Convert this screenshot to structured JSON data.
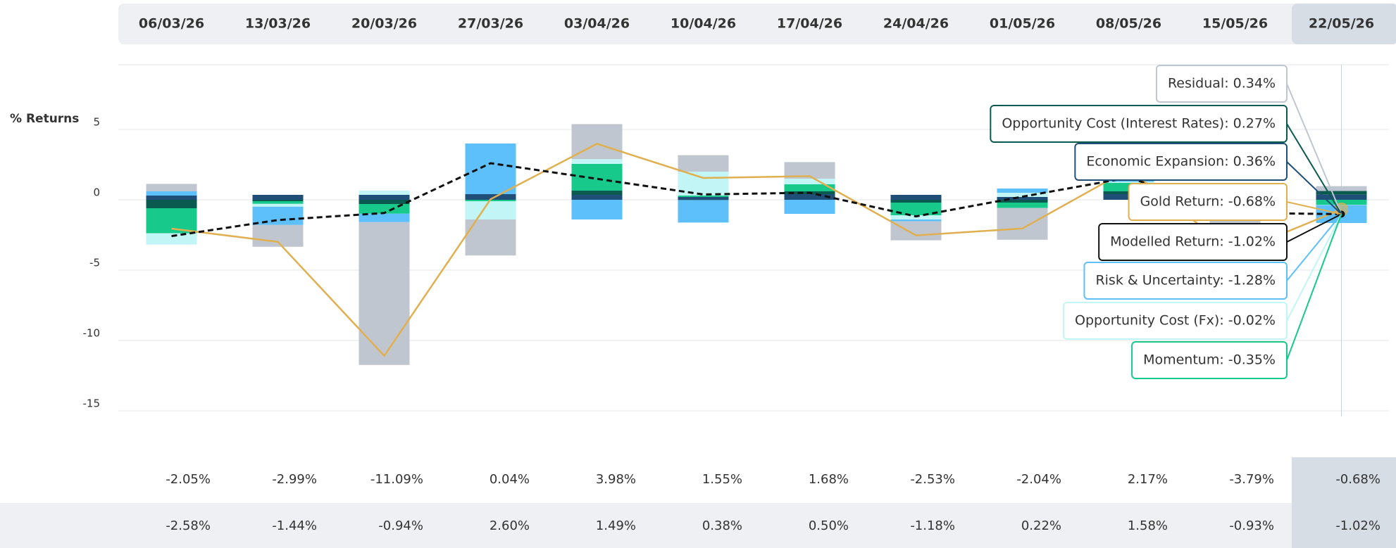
{
  "chart_data": {
    "type": "stacked-bar-line",
    "y_label": "% Returns",
    "categories": [
      "06/03/26",
      "13/03/26",
      "20/03/26",
      "27/03/26",
      "03/04/26",
      "10/04/26",
      "17/04/26",
      "24/04/26",
      "01/05/26",
      "08/05/26",
      "15/05/26",
      "22/05/26"
    ],
    "ylim": [
      -15,
      10
    ],
    "yticks": [
      -15,
      -10,
      -5,
      0,
      5
    ],
    "grid": true,
    "series": [
      {
        "name": "Economic Expansion",
        "color": "#1f4e79",
        "values": [
          0.3,
          0.35,
          0.35,
          0.4,
          0.35,
          0.2,
          0.4,
          0.35,
          0.2,
          0.4,
          0.3,
          0.36
        ]
      },
      {
        "name": "Opportunity Cost (Interest Rates)",
        "color": "#0b5a4f",
        "values": [
          -0.6,
          -0.1,
          -0.3,
          0,
          0.3,
          -0.02,
          0.2,
          -0.2,
          -0.2,
          0.2,
          -0.2,
          0.27
        ]
      },
      {
        "name": "Momentum",
        "color": "#17c98a",
        "values": [
          -1.78,
          -0.19,
          -0.69,
          -0.1,
          1.9,
          0.1,
          0.5,
          -0.9,
          -0.38,
          0.6,
          -0.3,
          -0.35
        ]
      },
      {
        "name": "Opportunity Cost (Fx)",
        "color": "#c2f5f5",
        "values": [
          -0.8,
          -0.2,
          0.3,
          -1.3,
          0.34,
          1.7,
          0.4,
          -0.3,
          0.3,
          0.08,
          -0.13,
          -0.02
        ]
      },
      {
        "name": "Risk & Uncertainty",
        "color": "#5ec0fa",
        "values": [
          0.3,
          -1.3,
          -0.6,
          3.6,
          -1.4,
          -1.6,
          -1.0,
          -0.13,
          0.3,
          0.3,
          -0.6,
          -1.28
        ]
      },
      {
        "name": "Residual",
        "color": "#c0c6cf",
        "values": [
          0.53,
          -1.55,
          -10.15,
          -2.56,
          2.49,
          1.17,
          1.18,
          -1.35,
          -2.26,
          0.59,
          -2.86,
          0.34
        ]
      }
    ],
    "lines": [
      {
        "name": "Gold Return",
        "color": "#e0b050",
        "dashed": false,
        "values": [
          -2.05,
          -2.99,
          -11.09,
          0.04,
          3.98,
          1.55,
          1.68,
          -2.53,
          -2.04,
          2.17,
          -3.79,
          -0.68
        ],
        "value_labels": [
          "-2.05%",
          "-2.99%",
          "-11.09%",
          "0.04%",
          "3.98%",
          "1.55%",
          "1.68%",
          "-2.53%",
          "-2.04%",
          "2.17%",
          "-3.79%",
          "-0.68%"
        ]
      },
      {
        "name": "Modelled Return",
        "color": "#111111",
        "dashed": true,
        "values": [
          -2.58,
          -1.44,
          -0.94,
          2.6,
          1.49,
          0.38,
          0.5,
          -1.18,
          0.22,
          1.58,
          -0.93,
          -1.02
        ],
        "value_labels": [
          "-2.58%",
          "-1.44%",
          "-0.94%",
          "2.60%",
          "1.49%",
          "0.38%",
          "0.50%",
          "-1.18%",
          "0.22%",
          "1.58%",
          "-0.93%",
          "-1.02%"
        ]
      }
    ],
    "tooltips": [
      {
        "text": "Residual: 0.34%",
        "color": "#c0c6cf"
      },
      {
        "text": "Opportunity Cost (Interest Rates): 0.27%",
        "color": "#0b5a4f"
      },
      {
        "text": "Economic Expansion: 0.36%",
        "color": "#1f4e79"
      },
      {
        "text": "Gold Return: -0.68%",
        "color": "#e0b050"
      },
      {
        "text": "Modelled Return: -1.02%",
        "color": "#111111"
      },
      {
        "text": "Risk & Uncertainty: -1.28%",
        "color": "#5ec0fa"
      },
      {
        "text": "Opportunity Cost (Fx): -0.02%",
        "color": "#c2f5f5"
      },
      {
        "text": "Momentum: -0.35%",
        "color": "#17c98a"
      }
    ]
  }
}
